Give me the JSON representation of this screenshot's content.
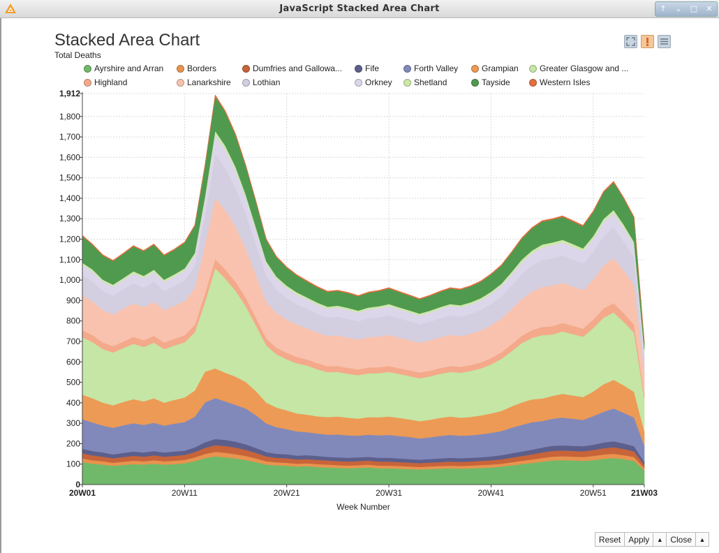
{
  "window": {
    "title": "JavaScript Stacked Area Chart",
    "controls": [
      "↑",
      "⌄",
      "□",
      "✕"
    ]
  },
  "header": {
    "title": "Stacked Area Chart",
    "subtitle": "Total Deaths"
  },
  "toolbar": {
    "zoom_icon": "zoom-fit-icon",
    "warning_icon": "warning-icon",
    "menu_icon": "menu-icon"
  },
  "legend": {
    "items": [
      {
        "label": "Ayrshire and Arran",
        "color": "#70b96a"
      },
      {
        "label": "Borders",
        "color": "#e8934f"
      },
      {
        "label": "Dumfries and Gallowa...",
        "color": "#c8643a"
      },
      {
        "label": "Fife",
        "color": "#5c5f8c"
      },
      {
        "label": "Forth Valley",
        "color": "#8189bb"
      },
      {
        "label": "Grampian",
        "color": "#ec9a55"
      },
      {
        "label": "Greater Glasgow and ...",
        "color": "#c5e6a5"
      },
      {
        "label": "Highland",
        "color": "#f4a98b"
      },
      {
        "label": "Lanarkshire",
        "color": "#f8c2ae"
      },
      {
        "label": "Lothian",
        "color": "#d4cfe0"
      },
      {
        "label": "Orkney",
        "color": "#dcd6ea"
      },
      {
        "label": "Shetland",
        "color": "#cde8a7"
      },
      {
        "label": "Tayside",
        "color": "#4f9a4f"
      },
      {
        "label": "Western Isles",
        "color": "#e56f3f"
      }
    ]
  },
  "chart_data": {
    "type": "area",
    "stacked": true,
    "title": "Stacked Area Chart",
    "subtitle": "Total Deaths",
    "xlabel": "Week Number",
    "ylabel": "",
    "ylim": [
      0,
      1912
    ],
    "y_ticks": [
      0,
      100,
      200,
      300,
      400,
      500,
      600,
      700,
      800,
      900,
      1000,
      1100,
      1200,
      1300,
      1400,
      1500,
      1600,
      1700,
      1800,
      1912
    ],
    "x": [
      "20W01",
      "20W02",
      "20W03",
      "20W04",
      "20W05",
      "20W06",
      "20W07",
      "20W08",
      "20W09",
      "20W10",
      "20W11",
      "20W12",
      "20W13",
      "20W14",
      "20W15",
      "20W16",
      "20W17",
      "20W18",
      "20W19",
      "20W20",
      "20W21",
      "20W22",
      "20W23",
      "20W24",
      "20W25",
      "20W26",
      "20W27",
      "20W28",
      "20W29",
      "20W30",
      "20W31",
      "20W32",
      "20W33",
      "20W34",
      "20W35",
      "20W36",
      "20W37",
      "20W38",
      "20W39",
      "20W40",
      "20W41",
      "20W42",
      "20W43",
      "20W44",
      "20W45",
      "20W46",
      "20W47",
      "20W48",
      "20W49",
      "20W50",
      "20W51",
      "20W52",
      "20W53",
      "21W01",
      "21W02",
      "21W03"
    ],
    "x_tick_labels": [
      "20W01",
      "20W11",
      "20W21",
      "20W31",
      "20W41",
      "20W51",
      "21W03"
    ],
    "grid": true,
    "legend_position": "top",
    "series": [
      {
        "name": "Ayrshire and Arran",
        "color": "#70b96a",
        "values": [
          110,
          102,
          98,
          92,
          96,
          100,
          98,
          102,
          98,
          100,
          104,
          115,
          130,
          138,
          134,
          128,
          120,
          110,
          98,
          94,
          92,
          88,
          90,
          86,
          84,
          82,
          80,
          82,
          84,
          80,
          80,
          78,
          76,
          74,
          76,
          78,
          80,
          78,
          80,
          82,
          84,
          88,
          94,
          100,
          106,
          112,
          118,
          120,
          118,
          116,
          120,
          126,
          130,
          124,
          116,
          70
        ]
      },
      {
        "name": "Borders",
        "color": "#e8934f",
        "values": [
          18,
          17,
          16,
          15,
          16,
          17,
          16,
          17,
          16,
          17,
          17,
          18,
          20,
          22,
          22,
          21,
          20,
          18,
          16,
          15,
          15,
          14,
          14,
          14,
          14,
          13,
          13,
          13,
          14,
          13,
          13,
          13,
          13,
          12,
          13,
          13,
          13,
          13,
          13,
          14,
          14,
          14,
          15,
          16,
          17,
          18,
          19,
          19,
          19,
          19,
          20,
          21,
          21,
          20,
          19,
          11
        ]
      },
      {
        "name": "Dumfries and Gallowa...",
        "color": "#c8643a",
        "values": [
          25,
          24,
          23,
          22,
          23,
          24,
          23,
          24,
          23,
          24,
          24,
          26,
          30,
          33,
          33,
          32,
          30,
          27,
          24,
          22,
          22,
          21,
          21,
          21,
          20,
          20,
          20,
          20,
          20,
          20,
          20,
          19,
          19,
          19,
          19,
          19,
          20,
          20,
          20,
          20,
          21,
          22,
          23,
          24,
          25,
          27,
          28,
          28,
          28,
          28,
          29,
          31,
          32,
          30,
          28,
          16
        ]
      },
      {
        "name": "Fife",
        "color": "#5c5f8c",
        "values": [
          22,
          21,
          20,
          19,
          20,
          21,
          20,
          21,
          20,
          21,
          21,
          23,
          27,
          30,
          30,
          29,
          27,
          24,
          21,
          20,
          20,
          19,
          19,
          19,
          18,
          18,
          18,
          18,
          18,
          18,
          18,
          18,
          17,
          17,
          17,
          18,
          18,
          18,
          18,
          18,
          19,
          20,
          21,
          22,
          23,
          24,
          25,
          25,
          25,
          25,
          26,
          28,
          29,
          27,
          25,
          14
        ]
      },
      {
        "name": "Forth Valley",
        "color": "#8189bb",
        "values": [
          145,
          140,
          132,
          130,
          135,
          138,
          135,
          138,
          132,
          136,
          140,
          150,
          195,
          200,
          188,
          180,
          175,
          160,
          140,
          130,
          122,
          118,
          112,
          110,
          108,
          112,
          110,
          106,
          108,
          110,
          112,
          110,
          108,
          104,
          106,
          110,
          112,
          110,
          110,
          112,
          115,
          118,
          125,
          130,
          134,
          130,
          132,
          136,
          132,
          128,
          140,
          150,
          160,
          150,
          140,
          80
        ]
      },
      {
        "name": "Grampian",
        "color": "#ec9a55",
        "values": [
          120,
          118,
          112,
          110,
          114,
          118,
          115,
          120,
          112,
          116,
          120,
          128,
          150,
          145,
          140,
          138,
          130,
          118,
          102,
          96,
          92,
          88,
          86,
          84,
          86,
          88,
          86,
          84,
          86,
          88,
          90,
          88,
          86,
          84,
          86,
          88,
          90,
          88,
          90,
          92,
          95,
          98,
          104,
          110,
          112,
          110,
          112,
          116,
          114,
          112,
          120,
          135,
          140,
          134,
          125,
          70
        ]
      },
      {
        "name": "Greater Glasgow and ...",
        "color": "#c5e6a5",
        "values": [
          280,
          275,
          262,
          258,
          264,
          270,
          266,
          272,
          262,
          266,
          270,
          285,
          340,
          490,
          460,
          420,
          370,
          320,
          280,
          260,
          250,
          245,
          240,
          230,
          220,
          218,
          215,
          212,
          214,
          216,
          218,
          215,
          212,
          210,
          212,
          216,
          218,
          220,
          225,
          230,
          240,
          255,
          270,
          290,
          300,
          310,
          300,
          305,
          300,
          295,
          310,
          325,
          330,
          310,
          290,
          160
        ]
      },
      {
        "name": "Highland",
        "color": "#f4a98b",
        "values": [
          35,
          34,
          32,
          31,
          32,
          34,
          33,
          34,
          32,
          33,
          34,
          36,
          42,
          45,
          45,
          44,
          42,
          38,
          34,
          32,
          32,
          31,
          30,
          30,
          29,
          29,
          29,
          28,
          29,
          29,
          29,
          28,
          28,
          28,
          28,
          28,
          29,
          29,
          29,
          30,
          31,
          32,
          34,
          36,
          38,
          40,
          41,
          41,
          41,
          40,
          42,
          45,
          46,
          43,
          40,
          22
        ]
      },
      {
        "name": "Lanarkshire",
        "color": "#f8c2ae",
        "values": [
          170,
          165,
          158,
          155,
          160,
          165,
          162,
          166,
          158,
          162,
          168,
          180,
          240,
          300,
          290,
          270,
          240,
          210,
          180,
          170,
          162,
          158,
          152,
          150,
          148,
          150,
          148,
          146,
          148,
          150,
          152,
          150,
          148,
          146,
          148,
          150,
          152,
          150,
          152,
          156,
          160,
          165,
          172,
          180,
          188,
          195,
          198,
          196,
          192,
          188,
          196,
          210,
          220,
          208,
          195,
          105
        ]
      },
      {
        "name": "Lothian",
        "color": "#d4cfe0",
        "values": [
          100,
          98,
          94,
          92,
          95,
          98,
          96,
          99,
          94,
          96,
          100,
          108,
          150,
          215,
          205,
          190,
          170,
          150,
          128,
          115,
          106,
          100,
          96,
          92,
          90,
          92,
          92,
          90,
          92,
          94,
          96,
          94,
          92,
          90,
          92,
          94,
          96,
          96,
          98,
          100,
          104,
          108,
          115,
          122,
          128,
          132,
          134,
          134,
          132,
          130,
          135,
          145,
          150,
          142,
          132,
          72
        ]
      },
      {
        "name": "Orkney",
        "color": "#dcd6ea",
        "values": [
          50,
          48,
          46,
          45,
          46,
          48,
          47,
          48,
          46,
          47,
          49,
          53,
          70,
          95,
          92,
          86,
          78,
          68,
          58,
          53,
          50,
          48,
          46,
          45,
          44,
          44,
          44,
          43,
          44,
          45,
          46,
          45,
          44,
          43,
          44,
          45,
          46,
          46,
          47,
          48,
          50,
          52,
          55,
          58,
          61,
          63,
          64,
          64,
          63,
          62,
          64,
          69,
          71,
          68,
          63,
          35
        ]
      },
      {
        "name": "Shetland",
        "color": "#cde8a7",
        "values": [
          10,
          10,
          9,
          9,
          9,
          10,
          10,
          10,
          9,
          10,
          10,
          11,
          14,
          17,
          17,
          16,
          15,
          13,
          11,
          10,
          10,
          10,
          9,
          9,
          9,
          9,
          9,
          9,
          9,
          9,
          9,
          9,
          9,
          9,
          9,
          9,
          9,
          9,
          9,
          10,
          10,
          10,
          11,
          12,
          12,
          13,
          13,
          13,
          13,
          12,
          13,
          14,
          14,
          14,
          13,
          7
        ]
      },
      {
        "name": "Tayside",
        "color": "#4f9a4f",
        "values": [
          130,
          120,
          118,
          115,
          118,
          122,
          120,
          122,
          118,
          120,
          125,
          132,
          150,
          170,
          165,
          155,
          140,
          125,
          105,
          95,
          88,
          82,
          78,
          75,
          72,
          72,
          72,
          70,
          72,
          74,
          76,
          74,
          72,
          70,
          72,
          74,
          76,
          76,
          78,
          80,
          84,
          88,
          95,
          102,
          108,
          112,
          112,
          112,
          110,
          108,
          118,
          130,
          135,
          128,
          118,
          35
        ]
      },
      {
        "name": "Western Isles",
        "color": "#e56f3f",
        "values": [
          4,
          4,
          4,
          4,
          4,
          4,
          4,
          4,
          4,
          4,
          4,
          4,
          5,
          6,
          6,
          6,
          5,
          5,
          4,
          4,
          4,
          4,
          4,
          4,
          4,
          4,
          4,
          4,
          4,
          4,
          4,
          4,
          4,
          4,
          4,
          4,
          4,
          4,
          4,
          4,
          4,
          4,
          4,
          5,
          5,
          5,
          5,
          5,
          5,
          5,
          5,
          5,
          5,
          5,
          5,
          3
        ]
      }
    ]
  },
  "footer": {
    "reset_label": "Reset",
    "apply_label": "Apply",
    "close_label": "Close",
    "arrow": "▲"
  }
}
